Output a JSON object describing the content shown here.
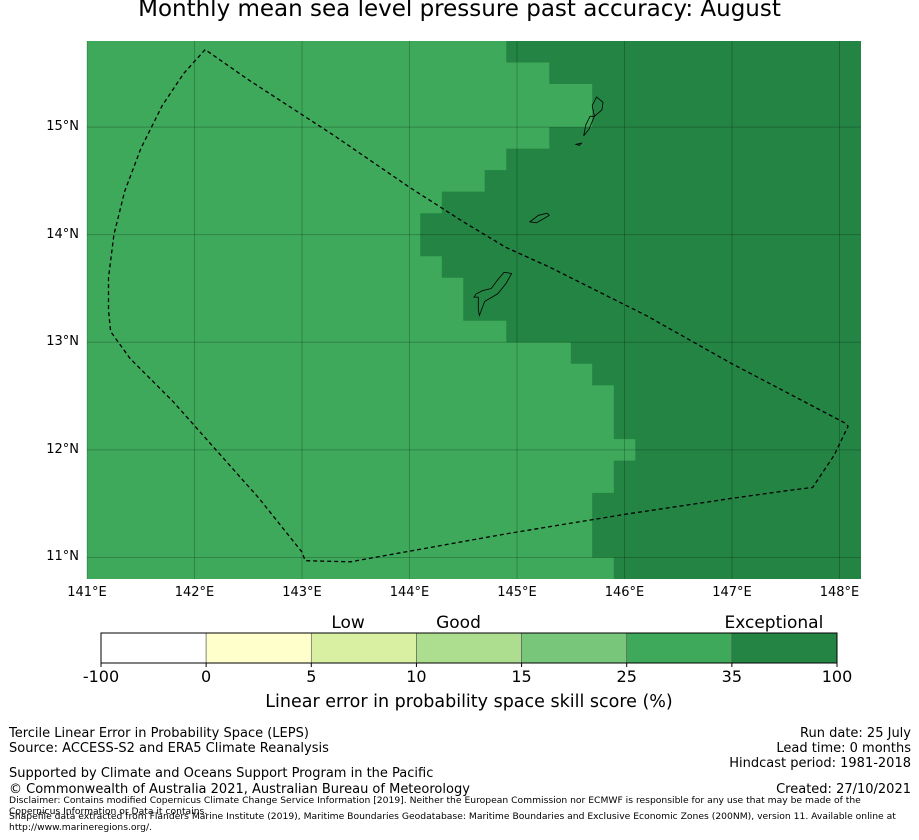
{
  "title": "Monthly mean sea level pressure past accuracy: August",
  "map": {
    "lon_range": [
      141.0,
      148.2
    ],
    "lat_range": [
      10.8,
      15.8
    ],
    "lon_ticks": [
      {
        "v": 141,
        "label": "141°E"
      },
      {
        "v": 142,
        "label": "142°E"
      },
      {
        "v": 143,
        "label": "143°E"
      },
      {
        "v": 144,
        "label": "144°E"
      },
      {
        "v": 145,
        "label": "145°E"
      },
      {
        "v": 146,
        "label": "146°E"
      },
      {
        "v": 147,
        "label": "147°E"
      },
      {
        "v": 148,
        "label": "148°E"
      }
    ],
    "lat_ticks": [
      {
        "v": 15,
        "label": "15°N"
      },
      {
        "v": 14,
        "label": "14°N"
      },
      {
        "v": 13,
        "label": "13°N"
      },
      {
        "v": 12,
        "label": "12°N"
      },
      {
        "v": 11,
        "label": "11°N"
      }
    ],
    "base_color": "#3ea95a",
    "high_color": "#238443",
    "exceptional_region_lon_lat": [
      [
        144.9,
        15.8
      ],
      [
        148.2,
        15.8
      ],
      [
        148.2,
        10.8
      ],
      [
        145.9,
        10.8
      ],
      [
        145.9,
        11.0
      ],
      [
        145.7,
        11.0
      ],
      [
        145.7,
        11.6
      ],
      [
        145.9,
        11.6
      ],
      [
        145.9,
        11.9
      ],
      [
        146.1,
        11.9
      ],
      [
        146.1,
        12.1
      ],
      [
        145.9,
        12.1
      ],
      [
        145.9,
        12.6
      ],
      [
        145.7,
        12.6
      ],
      [
        145.7,
        12.8
      ],
      [
        145.5,
        12.8
      ],
      [
        145.5,
        13.0
      ],
      [
        144.9,
        13.0
      ],
      [
        144.9,
        13.2
      ],
      [
        144.5,
        13.2
      ],
      [
        144.5,
        13.6
      ],
      [
        144.3,
        13.6
      ],
      [
        144.3,
        13.8
      ],
      [
        144.1,
        13.8
      ],
      [
        144.1,
        14.2
      ],
      [
        144.3,
        14.2
      ],
      [
        144.3,
        14.4
      ],
      [
        144.7,
        14.4
      ],
      [
        144.7,
        14.6
      ],
      [
        144.9,
        14.6
      ],
      [
        144.9,
        14.8
      ],
      [
        145.3,
        14.8
      ],
      [
        145.3,
        15.0
      ],
      [
        145.7,
        15.0
      ],
      [
        145.7,
        15.4
      ],
      [
        145.3,
        15.4
      ],
      [
        145.3,
        15.6
      ],
      [
        144.9,
        15.6
      ]
    ],
    "boundary_lon_lat": [
      [
        142.1,
        15.72
      ],
      [
        141.9,
        15.5
      ],
      [
        141.7,
        15.2
      ],
      [
        141.5,
        14.8
      ],
      [
        141.35,
        14.4
      ],
      [
        141.25,
        14.0
      ],
      [
        141.2,
        13.6
      ],
      [
        141.2,
        13.3
      ],
      [
        141.22,
        13.1
      ],
      [
        141.4,
        12.85
      ],
      [
        141.8,
        12.45
      ],
      [
        142.2,
        12.0
      ],
      [
        142.6,
        11.55
      ],
      [
        143.0,
        11.05
      ],
      [
        143.03,
        10.97
      ],
      [
        143.45,
        10.96
      ],
      [
        144.9,
        11.22
      ],
      [
        146.0,
        11.4
      ],
      [
        147.0,
        11.55
      ],
      [
        147.5,
        11.62
      ],
      [
        147.75,
        11.65
      ],
      [
        147.95,
        11.95
      ],
      [
        148.08,
        12.22
      ],
      [
        148.05,
        12.25
      ],
      [
        147.0,
        12.8
      ],
      [
        146.2,
        13.25
      ],
      [
        145.3,
        13.7
      ],
      [
        144.9,
        13.88
      ],
      [
        144.5,
        14.12
      ],
      [
        144.0,
        14.44
      ],
      [
        143.3,
        14.92
      ],
      [
        142.5,
        15.44
      ],
      [
        142.1,
        15.72
      ]
    ],
    "islands_lon_lat": [
      [
        [
          144.65,
          13.25
        ],
        [
          144.7,
          13.38
        ],
        [
          144.82,
          13.45
        ],
        [
          144.9,
          13.55
        ],
        [
          144.95,
          13.64
        ],
        [
          144.88,
          13.65
        ],
        [
          144.82,
          13.58
        ],
        [
          144.76,
          13.5
        ],
        [
          144.68,
          13.48
        ],
        [
          144.62,
          13.45
        ],
        [
          144.6,
          13.42
        ],
        [
          144.64,
          13.42
        ],
        [
          144.64,
          13.3
        ],
        [
          144.65,
          13.25
        ]
      ],
      [
        [
          145.12,
          14.12
        ],
        [
          145.18,
          14.11
        ],
        [
          145.25,
          14.15
        ],
        [
          145.3,
          14.18
        ],
        [
          145.28,
          14.2
        ],
        [
          145.2,
          14.18
        ],
        [
          145.12,
          14.12
        ]
      ],
      [
        [
          145.62,
          14.92
        ],
        [
          145.67,
          14.98
        ],
        [
          145.72,
          15.1
        ],
        [
          145.68,
          15.1
        ],
        [
          145.64,
          15.02
        ],
        [
          145.62,
          14.92
        ]
      ],
      [
        [
          145.72,
          15.1
        ],
        [
          145.79,
          15.16
        ],
        [
          145.8,
          15.23
        ],
        [
          145.74,
          15.28
        ],
        [
          145.7,
          15.2
        ],
        [
          145.72,
          15.1
        ]
      ],
      [
        [
          145.55,
          14.84
        ],
        [
          145.6,
          14.85
        ],
        [
          145.58,
          14.83
        ],
        [
          145.55,
          14.84
        ]
      ]
    ]
  },
  "colorbar": {
    "categories": [
      {
        "label": "Low",
        "pos": 2.35
      },
      {
        "label": "Good",
        "pos": 3.4
      },
      {
        "label": "Exceptional",
        "pos": 6.4
      }
    ],
    "segments": [
      {
        "color": "#ffffff"
      },
      {
        "color": "#ffffcc"
      },
      {
        "color": "#d9f0a3"
      },
      {
        "color": "#addd8e"
      },
      {
        "color": "#78c679"
      },
      {
        "color": "#3ea95a"
      },
      {
        "color": "#238443"
      }
    ],
    "ticks": [
      "-100",
      "0",
      "5",
      "10",
      "15",
      "25",
      "35",
      "100"
    ],
    "label": "Linear error in probability space skill score (%)"
  },
  "footer": {
    "left": [
      "Tercile Linear Error in Probability Space (LEPS)",
      "Source: ACCESS-S2 and ERA5 Climate Reanalysis",
      "Supported by Climate and Oceans Support Program in the Pacific",
      "© Commonwealth of Australia 2021, Australian Bureau of Meteorology"
    ],
    "right": [
      "Run date: 25 July",
      "Lead time: 0 months",
      "Hindcast period: 1981-2018",
      "Created: 27/10/2021"
    ],
    "disclaimer": "Disclaimer: Contains modified Copernicus Climate Change Service Information [2019]. Neither the European Commission nor ECMWF is responsible for any use that may be made of the Copernicus Information or Data it contains.",
    "shapefile": "Shapefile data extracted from Flanders Marine Institute (2019), Maritime Boundaries Geodatabase: Maritime Boundaries and Exclusive Economic Zones (200NM), version 11. Available online at http://www.marineregions.org/."
  }
}
